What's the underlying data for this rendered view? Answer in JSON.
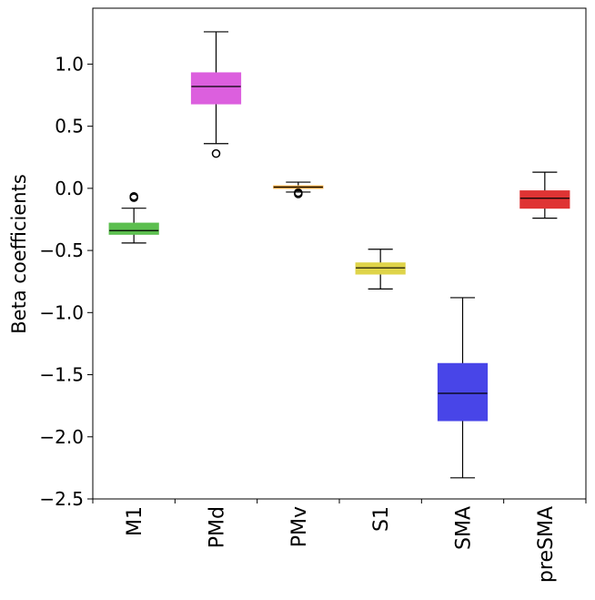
{
  "chart_data": {
    "type": "box",
    "title": "",
    "xlabel": "",
    "ylabel": "Beta coefficients",
    "ylim": [
      -2.5,
      1.45
    ],
    "yticks": [
      -2.5,
      -2.0,
      -1.5,
      -1.0,
      -0.5,
      0.0,
      0.5,
      1.0
    ],
    "ytick_labels": [
      "−2.5",
      "−2.0",
      "−1.5",
      "−1.0",
      "−0.5",
      "0.0",
      "0.5",
      "1.0"
    ],
    "categories": [
      "M1",
      "PMd",
      "PMv",
      "S1",
      "SMA",
      "preSMA"
    ],
    "grid": false,
    "boxes": [
      {
        "label": "M1",
        "color": "#5cbf4f",
        "whisker_low": -0.44,
        "q1": -0.37,
        "median": -0.34,
        "q3": -0.28,
        "whisker_high": -0.16,
        "outliers": [
          -0.065,
          -0.075
        ]
      },
      {
        "label": "PMd",
        "color": "#dc5fde",
        "whisker_low": 0.36,
        "q1": 0.68,
        "median": 0.82,
        "q3": 0.93,
        "whisker_high": 1.26,
        "outliers": [
          0.28
        ]
      },
      {
        "label": "PMv",
        "color": "#f4a73b",
        "whisker_low": -0.03,
        "q1": 0.0,
        "median": 0.01,
        "q3": 0.02,
        "whisker_high": 0.05,
        "outliers": [
          -0.035,
          -0.045
        ]
      },
      {
        "label": "S1",
        "color": "#dfd44a",
        "whisker_low": -0.81,
        "q1": -0.69,
        "median": -0.64,
        "q3": -0.6,
        "whisker_high": -0.49,
        "outliers": []
      },
      {
        "label": "SMA",
        "color": "#4845e8",
        "whisker_low": -2.33,
        "q1": -1.87,
        "median": -1.65,
        "q3": -1.41,
        "whisker_high": -0.88,
        "outliers": []
      },
      {
        "label": "preSMA",
        "color": "#df3434",
        "whisker_low": -0.24,
        "q1": -0.16,
        "median": -0.08,
        "q3": -0.02,
        "whisker_high": 0.13,
        "outliers": []
      }
    ]
  }
}
